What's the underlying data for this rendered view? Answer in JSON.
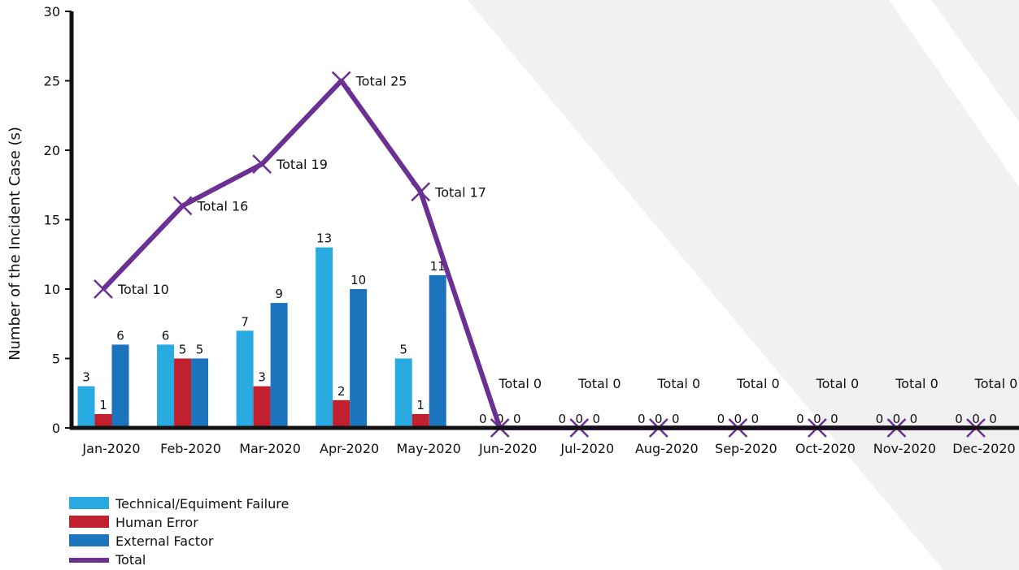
{
  "chart_data": {
    "type": "bar",
    "ylabel": "Number of the Incident Case (s)",
    "ylim": [
      0,
      30
    ],
    "yticks": [
      0,
      5,
      10,
      15,
      20,
      25,
      30
    ],
    "categories": [
      "Jan-2020",
      "Feb-2020",
      "Mar-2020",
      "Apr-2020",
      "May-2020",
      "Jun-2020",
      "Jul-2020",
      "Aug-2020",
      "Sep-2020",
      "Oct-2020",
      "Nov-2020",
      "Dec-2020"
    ],
    "series": [
      {
        "name": "Technical/Equiment Failure",
        "type": "bar",
        "color": "#29aae1",
        "values": [
          3,
          6,
          7,
          13,
          5,
          0,
          0,
          0,
          0,
          0,
          0,
          0
        ]
      },
      {
        "name": "Human Error",
        "type": "bar",
        "color": "#c1202f",
        "values": [
          1,
          5,
          3,
          2,
          1,
          0,
          0,
          0,
          0,
          0,
          0,
          0
        ]
      },
      {
        "name": "External Factor",
        "type": "bar",
        "color": "#1c75bc",
        "values": [
          6,
          5,
          9,
          10,
          11,
          0,
          0,
          0,
          0,
          0,
          0,
          0
        ]
      },
      {
        "name": "Total",
        "type": "line",
        "color": "#6a3093",
        "values": [
          10,
          16,
          19,
          25,
          17,
          0,
          0,
          0,
          0,
          0,
          0,
          0
        ]
      }
    ],
    "total_label_prefix": "Total",
    "legend": "bottom-left",
    "grid": false
  }
}
